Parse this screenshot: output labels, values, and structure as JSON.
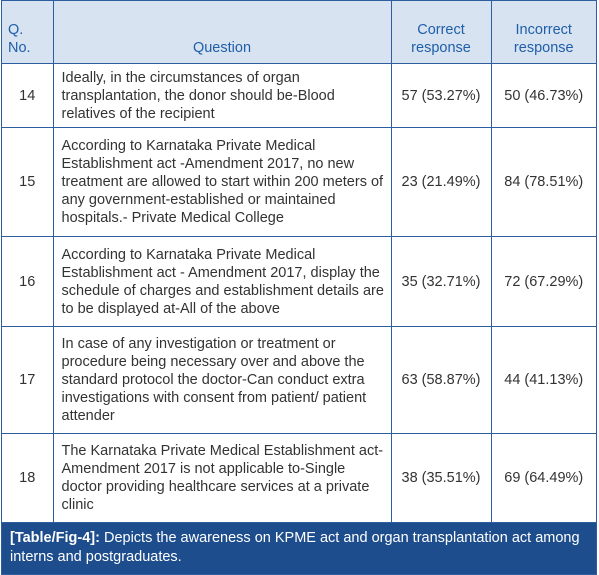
{
  "table": {
    "header": [
      "Q. No.",
      "Question",
      "Correct response",
      "Incorrect response"
    ],
    "rows": [
      [
        "14",
        "Ideally, in the circumstances of organ transplantation, the donor should be-Blood relatives of the recipient",
        "57 (53.27%)",
        "50 (46.73%)"
      ],
      [
        "15",
        "According to Karnataka Private Medical Establishment act -Amendment 2017, no new treatment are allowed to start within 200 meters of any government-established or maintained hospitals.- Private Medical College",
        "23 (21.49%)",
        "84 (78.51%)"
      ],
      [
        "16",
        "According to Karnataka Private Medical Establishment act - Amendment 2017, display the schedule of charges and establishment details are to be displayed at-All of the above",
        "35 (32.71%)",
        "72 (67.29%)"
      ],
      [
        "17",
        "In case of any investigation or treatment or procedure being necessary over and above the standard protocol the doctor-Can conduct extra investigations with consent from patient/ patient attender",
        "63 (58.87%)",
        "44 (41.13%)"
      ],
      [
        "18",
        "The Karnataka Private Medical Establishment act-Amendment 2017 is not applicable to-Single doctor providing healthcare services at a private clinic",
        "38 (35.51%)",
        "69 (64.49%)"
      ]
    ]
  },
  "caption": {
    "label": "[Table/Fig-4]:",
    "text": "Depicts the awareness on KPME act and organ transplantation act among interns and postgraduates."
  }
}
